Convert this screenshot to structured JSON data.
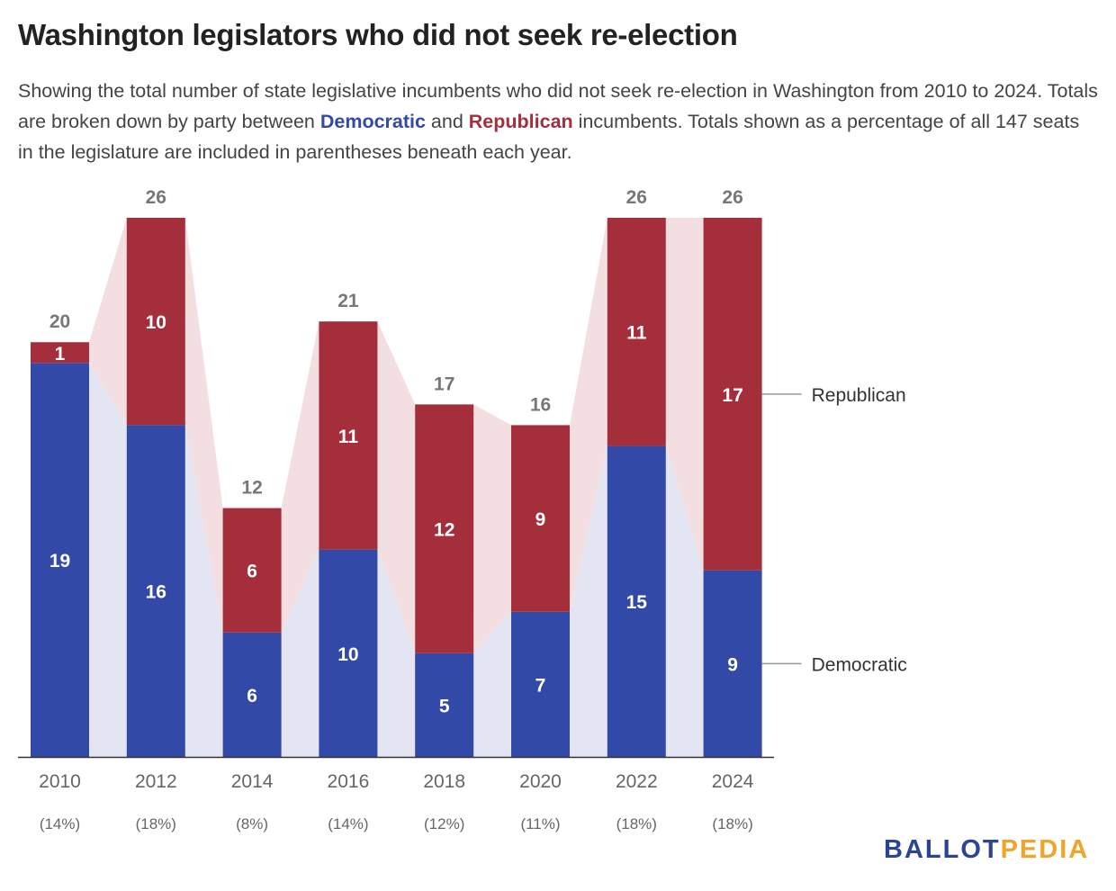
{
  "title": "Washington legislators who did not seek re-election",
  "subtitle": {
    "part1": "Showing the total number of state legislative incumbents who did not seek re-election in Washington from 2010 to 2024. Totals are broken down by party between ",
    "dem_word": "Democratic",
    "part2": " and ",
    "rep_word": "Republican",
    "part3": " incumbents. Totals shown as a percentage of all 147 seats in the legislature are included in parentheses beneath each year."
  },
  "logo": {
    "ballot": "BALLOT",
    "pedia": "PEDIA"
  },
  "colors": {
    "democratic": "#3349a8",
    "republican": "#a52e3b",
    "democratic_band": "#e3e5f2",
    "republican_band": "#f3dfe1",
    "total_label": "#777777",
    "axis_label": "#666666"
  },
  "chart_data": {
    "type": "bar",
    "stacked": true,
    "categories": [
      "2010",
      "2012",
      "2014",
      "2016",
      "2018",
      "2020",
      "2022",
      "2024"
    ],
    "percent_labels": [
      "(14%)",
      "(18%)",
      "(8%)",
      "(14%)",
      "(12%)",
      "(11%)",
      "(18%)",
      "(18%)"
    ],
    "series": [
      {
        "name": "Democratic",
        "values": [
          19,
          16,
          6,
          10,
          5,
          7,
          15,
          9
        ]
      },
      {
        "name": "Republican",
        "values": [
          1,
          10,
          6,
          11,
          12,
          9,
          11,
          17
        ]
      }
    ],
    "totals": [
      20,
      26,
      12,
      21,
      17,
      16,
      26,
      26
    ],
    "legend": [
      "Republican",
      "Democratic"
    ],
    "ylim": [
      0,
      26
    ]
  }
}
